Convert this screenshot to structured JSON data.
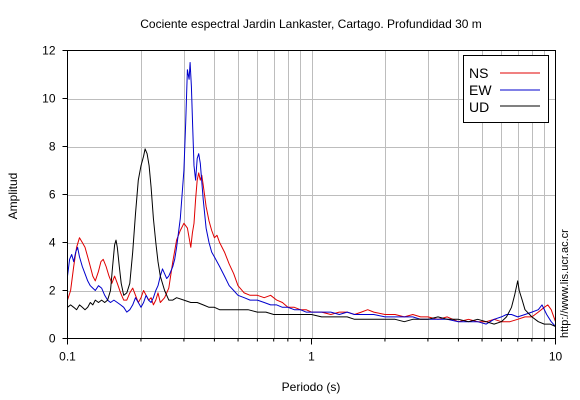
{
  "chart_data": {
    "type": "line",
    "title": "Cociente espectral Jardin Lankaster, Cartago. Profundidad 30 m",
    "xlabel": "Periodo (s)",
    "ylabel": "Amplitud",
    "x_scale": "log",
    "xlim": [
      0.1,
      10
    ],
    "ylim": [
      0,
      12
    ],
    "x_ticks": [
      {
        "value": 0.1,
        "label": "0.1"
      },
      {
        "value": 1,
        "label": "1"
      },
      {
        "value": 10,
        "label": "10"
      }
    ],
    "y_ticks": [
      {
        "value": 0,
        "label": "0"
      },
      {
        "value": 2,
        "label": "2"
      },
      {
        "value": 4,
        "label": "4"
      },
      {
        "value": 6,
        "label": "6"
      },
      {
        "value": 8,
        "label": "8"
      },
      {
        "value": 10,
        "label": "10"
      },
      {
        "value": 12,
        "label": "12"
      }
    ],
    "grid": true,
    "legend_position": "top-right",
    "series": [
      {
        "name": "NS",
        "color": "#e00000",
        "points": [
          [
            0.1,
            1.6
          ],
          [
            0.103,
            2.0
          ],
          [
            0.106,
            3.0
          ],
          [
            0.109,
            3.8
          ],
          [
            0.112,
            4.2
          ],
          [
            0.115,
            4.0
          ],
          [
            0.118,
            3.8
          ],
          [
            0.121,
            3.4
          ],
          [
            0.124,
            3.0
          ],
          [
            0.127,
            2.6
          ],
          [
            0.13,
            2.4
          ],
          [
            0.134,
            2.8
          ],
          [
            0.137,
            3.2
          ],
          [
            0.14,
            3.3
          ],
          [
            0.144,
            3.0
          ],
          [
            0.148,
            2.6
          ],
          [
            0.152,
            2.3
          ],
          [
            0.156,
            2.6
          ],
          [
            0.16,
            2.3
          ],
          [
            0.165,
            1.9
          ],
          [
            0.17,
            1.6
          ],
          [
            0.175,
            1.6
          ],
          [
            0.18,
            1.9
          ],
          [
            0.185,
            2.1
          ],
          [
            0.19,
            1.8
          ],
          [
            0.195,
            1.5
          ],
          [
            0.2,
            1.7
          ],
          [
            0.205,
            2.0
          ],
          [
            0.21,
            1.8
          ],
          [
            0.215,
            1.6
          ],
          [
            0.22,
            1.7
          ],
          [
            0.225,
            1.4
          ],
          [
            0.23,
            1.6
          ],
          [
            0.235,
            1.9
          ],
          [
            0.24,
            1.5
          ],
          [
            0.25,
            1.7
          ],
          [
            0.26,
            2.1
          ],
          [
            0.27,
            3.2
          ],
          [
            0.28,
            4.1
          ],
          [
            0.29,
            4.5
          ],
          [
            0.3,
            4.8
          ],
          [
            0.31,
            4.6
          ],
          [
            0.315,
            4.2
          ],
          [
            0.32,
            3.8
          ],
          [
            0.325,
            4.4
          ],
          [
            0.33,
            4.8
          ],
          [
            0.335,
            5.8
          ],
          [
            0.34,
            6.6
          ],
          [
            0.345,
            6.9
          ],
          [
            0.35,
            6.6
          ],
          [
            0.355,
            6.8
          ],
          [
            0.36,
            6.4
          ],
          [
            0.37,
            5.5
          ],
          [
            0.38,
            4.9
          ],
          [
            0.39,
            4.5
          ],
          [
            0.4,
            4.2
          ],
          [
            0.41,
            4.3
          ],
          [
            0.42,
            4.0
          ],
          [
            0.44,
            3.6
          ],
          [
            0.46,
            3.1
          ],
          [
            0.48,
            2.7
          ],
          [
            0.5,
            2.2
          ],
          [
            0.53,
            1.9
          ],
          [
            0.56,
            1.8
          ],
          [
            0.6,
            1.8
          ],
          [
            0.64,
            1.7
          ],
          [
            0.68,
            1.8
          ],
          [
            0.72,
            1.6
          ],
          [
            0.76,
            1.5
          ],
          [
            0.8,
            1.3
          ],
          [
            0.85,
            1.3
          ],
          [
            0.9,
            1.2
          ],
          [
            0.95,
            1.2
          ],
          [
            1.0,
            1.1
          ],
          [
            1.1,
            1.1
          ],
          [
            1.2,
            1.0
          ],
          [
            1.3,
            1.1
          ],
          [
            1.4,
            1.1
          ],
          [
            1.5,
            1.0
          ],
          [
            1.6,
            1.1
          ],
          [
            1.7,
            1.2
          ],
          [
            1.8,
            1.1
          ],
          [
            2.0,
            1.0
          ],
          [
            2.2,
            1.0
          ],
          [
            2.4,
            0.9
          ],
          [
            2.6,
            1.0
          ],
          [
            2.8,
            0.9
          ],
          [
            3.0,
            0.9
          ],
          [
            3.3,
            0.8
          ],
          [
            3.6,
            0.9
          ],
          [
            4.0,
            0.7
          ],
          [
            4.4,
            0.8
          ],
          [
            4.8,
            0.7
          ],
          [
            5.2,
            0.7
          ],
          [
            5.6,
            0.8
          ],
          [
            6.0,
            0.7
          ],
          [
            6.5,
            0.7
          ],
          [
            7.0,
            0.8
          ],
          [
            7.5,
            0.9
          ],
          [
            8.0,
            0.9
          ],
          [
            8.5,
            1.1
          ],
          [
            9.0,
            1.3
          ],
          [
            9.3,
            1.4
          ],
          [
            9.6,
            1.2
          ],
          [
            10.0,
            0.7
          ]
        ]
      },
      {
        "name": "EW",
        "color": "#0000cc",
        "points": [
          [
            0.1,
            2.6
          ],
          [
            0.102,
            3.3
          ],
          [
            0.104,
            3.5
          ],
          [
            0.106,
            3.2
          ],
          [
            0.108,
            3.6
          ],
          [
            0.11,
            3.8
          ],
          [
            0.112,
            3.4
          ],
          [
            0.115,
            3.0
          ],
          [
            0.118,
            2.7
          ],
          [
            0.121,
            2.4
          ],
          [
            0.124,
            2.2
          ],
          [
            0.127,
            2.1
          ],
          [
            0.13,
            2.0
          ],
          [
            0.134,
            2.2
          ],
          [
            0.138,
            2.1
          ],
          [
            0.142,
            1.8
          ],
          [
            0.146,
            1.6
          ],
          [
            0.15,
            1.5
          ],
          [
            0.155,
            1.6
          ],
          [
            0.16,
            1.5
          ],
          [
            0.165,
            1.4
          ],
          [
            0.17,
            1.3
          ],
          [
            0.175,
            1.1
          ],
          [
            0.18,
            1.2
          ],
          [
            0.185,
            1.4
          ],
          [
            0.19,
            1.7
          ],
          [
            0.195,
            1.5
          ],
          [
            0.2,
            1.3
          ],
          [
            0.205,
            1.5
          ],
          [
            0.21,
            1.8
          ],
          [
            0.215,
            1.6
          ],
          [
            0.22,
            1.5
          ],
          [
            0.225,
            1.7
          ],
          [
            0.23,
            2.0
          ],
          [
            0.235,
            2.2
          ],
          [
            0.24,
            2.6
          ],
          [
            0.245,
            2.9
          ],
          [
            0.25,
            2.7
          ],
          [
            0.255,
            2.5
          ],
          [
            0.26,
            2.6
          ],
          [
            0.265,
            2.8
          ],
          [
            0.27,
            3.0
          ],
          [
            0.275,
            3.3
          ],
          [
            0.28,
            3.8
          ],
          [
            0.29,
            5.0
          ],
          [
            0.3,
            7.0
          ],
          [
            0.305,
            9.0
          ],
          [
            0.31,
            11.2
          ],
          [
            0.315,
            10.8
          ],
          [
            0.318,
            11.5
          ],
          [
            0.322,
            10.5
          ],
          [
            0.326,
            8.8
          ],
          [
            0.33,
            7.2
          ],
          [
            0.335,
            6.6
          ],
          [
            0.34,
            7.5
          ],
          [
            0.345,
            7.7
          ],
          [
            0.35,
            7.3
          ],
          [
            0.36,
            5.8
          ],
          [
            0.37,
            4.6
          ],
          [
            0.38,
            4.0
          ],
          [
            0.39,
            3.6
          ],
          [
            0.4,
            3.4
          ],
          [
            0.42,
            3.0
          ],
          [
            0.44,
            2.6
          ],
          [
            0.46,
            2.2
          ],
          [
            0.48,
            2.0
          ],
          [
            0.5,
            1.8
          ],
          [
            0.53,
            1.7
          ],
          [
            0.56,
            1.6
          ],
          [
            0.6,
            1.6
          ],
          [
            0.64,
            1.5
          ],
          [
            0.68,
            1.4
          ],
          [
            0.72,
            1.4
          ],
          [
            0.76,
            1.3
          ],
          [
            0.8,
            1.3
          ],
          [
            0.85,
            1.2
          ],
          [
            0.9,
            1.2
          ],
          [
            0.95,
            1.1
          ],
          [
            1.0,
            1.1
          ],
          [
            1.1,
            1.1
          ],
          [
            1.2,
            1.1
          ],
          [
            1.3,
            1.0
          ],
          [
            1.4,
            1.1
          ],
          [
            1.5,
            1.0
          ],
          [
            1.6,
            1.0
          ],
          [
            1.7,
            1.0
          ],
          [
            1.8,
            1.0
          ],
          [
            2.0,
            0.9
          ],
          [
            2.2,
            0.9
          ],
          [
            2.4,
            0.9
          ],
          [
            2.6,
            0.9
          ],
          [
            2.8,
            0.8
          ],
          [
            3.0,
            0.8
          ],
          [
            3.3,
            0.8
          ],
          [
            3.6,
            0.8
          ],
          [
            4.0,
            0.7
          ],
          [
            4.4,
            0.7
          ],
          [
            4.8,
            0.7
          ],
          [
            5.2,
            0.6
          ],
          [
            5.6,
            0.8
          ],
          [
            6.0,
            0.9
          ],
          [
            6.3,
            1.0
          ],
          [
            6.6,
            1.0
          ],
          [
            7.0,
            0.9
          ],
          [
            7.5,
            1.0
          ],
          [
            8.0,
            1.1
          ],
          [
            8.5,
            1.2
          ],
          [
            8.8,
            1.4
          ],
          [
            9.2,
            1.0
          ],
          [
            9.6,
            0.7
          ],
          [
            10.0,
            0.5
          ]
        ]
      },
      {
        "name": "UD",
        "color": "#000000",
        "points": [
          [
            0.1,
            1.3
          ],
          [
            0.103,
            1.4
          ],
          [
            0.106,
            1.3
          ],
          [
            0.109,
            1.2
          ],
          [
            0.112,
            1.4
          ],
          [
            0.115,
            1.3
          ],
          [
            0.118,
            1.2
          ],
          [
            0.121,
            1.3
          ],
          [
            0.124,
            1.5
          ],
          [
            0.127,
            1.4
          ],
          [
            0.13,
            1.6
          ],
          [
            0.134,
            1.5
          ],
          [
            0.138,
            1.6
          ],
          [
            0.142,
            1.5
          ],
          [
            0.146,
            1.6
          ],
          [
            0.15,
            2.0
          ],
          [
            0.153,
            3.0
          ],
          [
            0.156,
            3.9
          ],
          [
            0.158,
            4.1
          ],
          [
            0.16,
            3.8
          ],
          [
            0.163,
            3.0
          ],
          [
            0.166,
            2.3
          ],
          [
            0.17,
            1.8
          ],
          [
            0.175,
            1.9
          ],
          [
            0.18,
            2.3
          ],
          [
            0.185,
            3.6
          ],
          [
            0.19,
            5.2
          ],
          [
            0.195,
            6.6
          ],
          [
            0.2,
            7.2
          ],
          [
            0.205,
            7.6
          ],
          [
            0.208,
            7.9
          ],
          [
            0.212,
            7.7
          ],
          [
            0.216,
            7.2
          ],
          [
            0.22,
            6.3
          ],
          [
            0.225,
            5.0
          ],
          [
            0.23,
            4.0
          ],
          [
            0.235,
            3.2
          ],
          [
            0.24,
            2.6
          ],
          [
            0.25,
            2.0
          ],
          [
            0.26,
            1.6
          ],
          [
            0.27,
            1.6
          ],
          [
            0.28,
            1.7
          ],
          [
            0.3,
            1.6
          ],
          [
            0.32,
            1.5
          ],
          [
            0.34,
            1.5
          ],
          [
            0.36,
            1.4
          ],
          [
            0.38,
            1.3
          ],
          [
            0.4,
            1.3
          ],
          [
            0.42,
            1.2
          ],
          [
            0.45,
            1.2
          ],
          [
            0.48,
            1.2
          ],
          [
            0.5,
            1.2
          ],
          [
            0.55,
            1.2
          ],
          [
            0.6,
            1.1
          ],
          [
            0.65,
            1.1
          ],
          [
            0.7,
            1.0
          ],
          [
            0.75,
            1.0
          ],
          [
            0.8,
            1.0
          ],
          [
            0.85,
            1.0
          ],
          [
            0.9,
            1.0
          ],
          [
            0.95,
            1.0
          ],
          [
            1.0,
            1.0
          ],
          [
            1.1,
            0.9
          ],
          [
            1.2,
            0.9
          ],
          [
            1.3,
            0.9
          ],
          [
            1.4,
            0.9
          ],
          [
            1.5,
            0.8
          ],
          [
            1.6,
            0.8
          ],
          [
            1.7,
            0.8
          ],
          [
            1.8,
            0.8
          ],
          [
            2.0,
            0.8
          ],
          [
            2.2,
            0.8
          ],
          [
            2.4,
            0.7
          ],
          [
            2.6,
            0.8
          ],
          [
            2.8,
            0.8
          ],
          [
            3.0,
            0.8
          ],
          [
            3.3,
            0.9
          ],
          [
            3.6,
            0.8
          ],
          [
            4.0,
            0.8
          ],
          [
            4.4,
            0.7
          ],
          [
            4.8,
            0.8
          ],
          [
            5.2,
            0.7
          ],
          [
            5.6,
            0.6
          ],
          [
            6.0,
            0.7
          ],
          [
            6.3,
            0.9
          ],
          [
            6.6,
            1.3
          ],
          [
            6.8,
            1.8
          ],
          [
            7.0,
            2.4
          ],
          [
            7.1,
            2.0
          ],
          [
            7.3,
            1.6
          ],
          [
            7.5,
            1.2
          ],
          [
            8.0,
            0.9
          ],
          [
            8.5,
            0.7
          ],
          [
            9.0,
            0.6
          ],
          [
            9.5,
            0.6
          ],
          [
            10.0,
            0.5
          ]
        ]
      }
    ]
  },
  "side_text": "http://www.lis.ucr.ac.cr"
}
